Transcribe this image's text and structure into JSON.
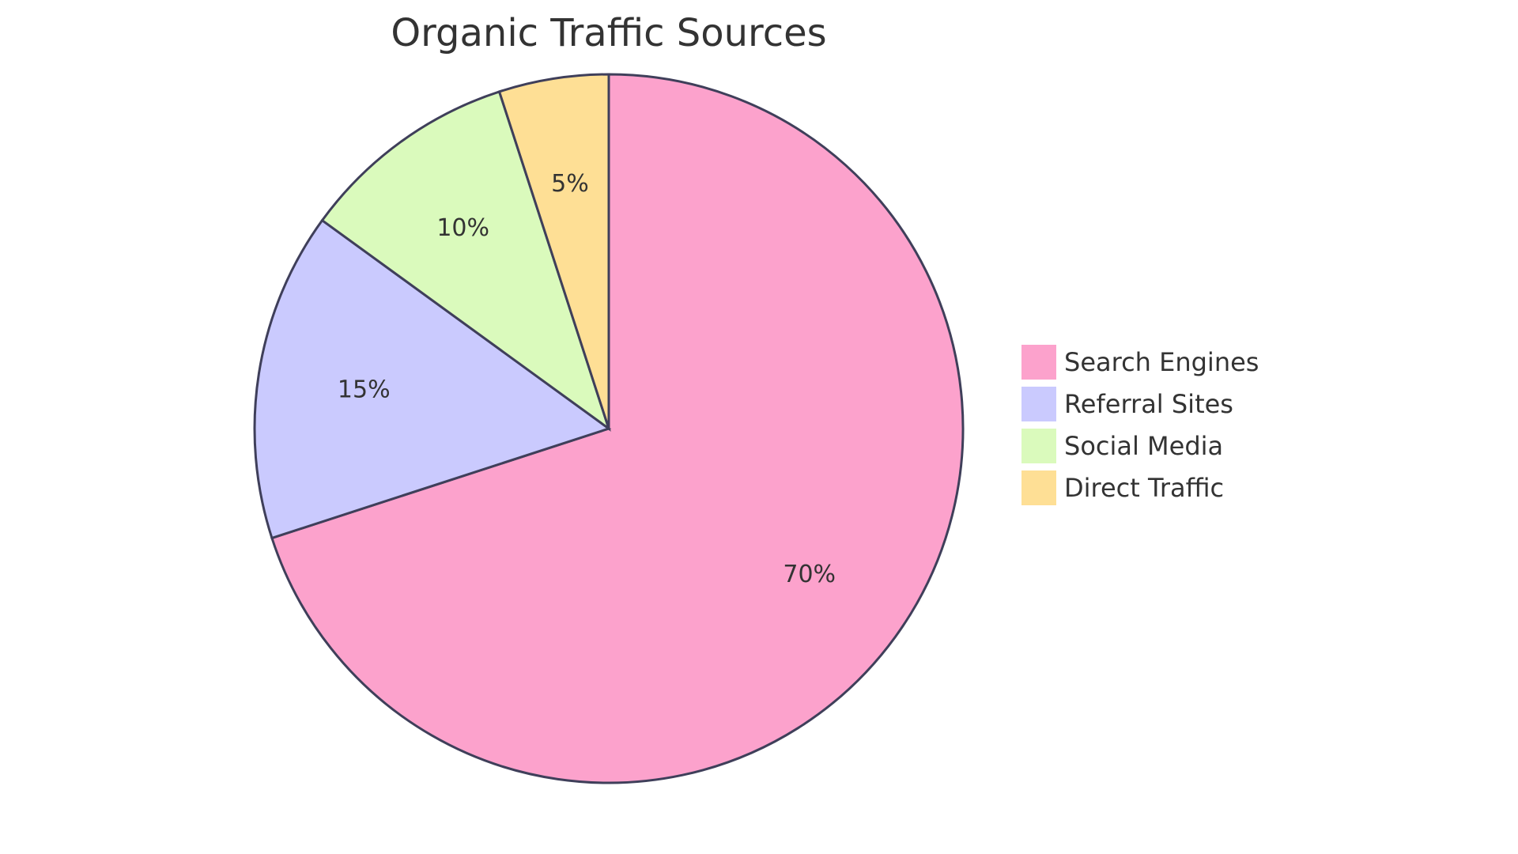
{
  "chart_data": {
    "type": "pie",
    "title": "Organic Traffic Sources",
    "legend_position": "right",
    "slices": [
      {
        "label": "Search Engines",
        "value": 70,
        "display": "70%",
        "color": "#fca2cc"
      },
      {
        "label": "Referral Sites",
        "value": 15,
        "display": "15%",
        "color": "#cacafe"
      },
      {
        "label": "Social Media",
        "value": 10,
        "display": "10%",
        "color": "#dafabc"
      },
      {
        "label": "Direct Traffic",
        "value": 5,
        "display": "5%",
        "color": "#fedf95"
      }
    ]
  }
}
